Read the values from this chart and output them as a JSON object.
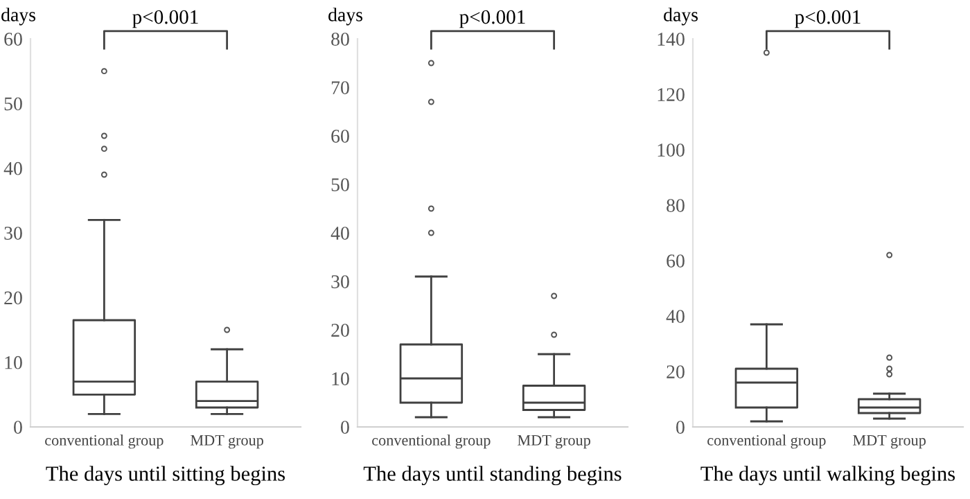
{
  "chart_data": [
    {
      "type": "box",
      "xlabel": "The days until sitting begins",
      "ylabel": "days",
      "categories": [
        "conventional group",
        "MDT group"
      ],
      "ylim": [
        0,
        60
      ],
      "yticks": [
        0,
        10,
        20,
        30,
        40,
        50,
        60
      ],
      "grid": false,
      "annotations": [
        "p<0.001"
      ],
      "boxes": [
        {
          "low": 2,
          "q1": 5,
          "median": 7,
          "q3": 16.5,
          "high": 32,
          "outliers": [
            39,
            43,
            45,
            55
          ]
        },
        {
          "low": 2,
          "q1": 3,
          "median": 4,
          "q3": 7,
          "high": 12,
          "outliers": [
            15
          ]
        }
      ]
    },
    {
      "type": "box",
      "xlabel": "The days until standing begins",
      "ylabel": "days",
      "categories": [
        "conventional group",
        "MDT group"
      ],
      "ylim": [
        0,
        80
      ],
      "yticks": [
        0,
        10,
        20,
        30,
        40,
        50,
        60,
        70,
        80
      ],
      "grid": false,
      "annotations": [
        "p<0.001"
      ],
      "boxes": [
        {
          "low": 2,
          "q1": 5,
          "median": 10,
          "q3": 17,
          "high": 31,
          "outliers": [
            40,
            45,
            67,
            75
          ]
        },
        {
          "low": 2,
          "q1": 3.5,
          "median": 5,
          "q3": 8.5,
          "high": 15,
          "outliers": [
            19,
            27
          ]
        }
      ]
    },
    {
      "type": "box",
      "xlabel": "The days until walking begins",
      "ylabel": "days",
      "categories": [
        "conventional group",
        "MDT group"
      ],
      "ylim": [
        0,
        140
      ],
      "yticks": [
        0,
        20,
        40,
        60,
        80,
        100,
        120,
        140
      ],
      "grid": false,
      "annotations": [
        "p<0.001"
      ],
      "boxes": [
        {
          "low": 2,
          "q1": 7,
          "median": 16,
          "q3": 21,
          "high": 37,
          "outliers": [
            135
          ]
        },
        {
          "low": 3,
          "q1": 5,
          "median": 7,
          "q3": 10,
          "high": 12,
          "outliers": [
            19,
            21,
            25,
            62
          ]
        }
      ]
    }
  ]
}
